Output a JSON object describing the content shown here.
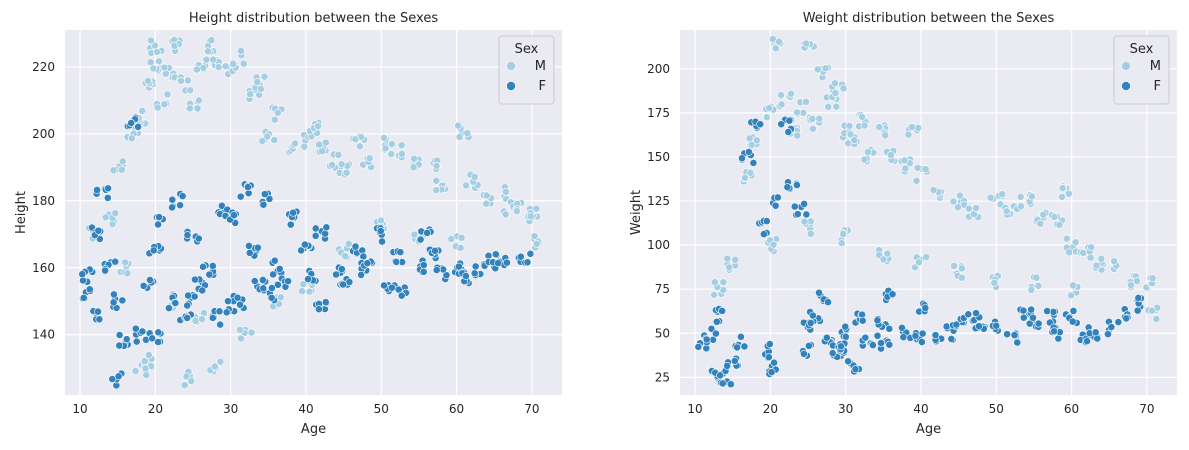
{
  "colors": {
    "M": "#a6cee3",
    "F": "#3182bd",
    "point_edge": "#ffffff"
  },
  "chart_data": [
    {
      "type": "scatter",
      "title": "Height distribution between the Sexes",
      "xlabel": "Age",
      "ylabel": "Height",
      "xlim": [
        8,
        74
      ],
      "ylim": [
        122,
        231
      ],
      "xticks": [
        10,
        20,
        30,
        40,
        50,
        60,
        70
      ],
      "yticks": [
        140,
        160,
        180,
        200,
        220
      ],
      "grid": true,
      "legend": {
        "title": "Sex",
        "placement": "top-right",
        "entries": [
          "M",
          "F"
        ]
      },
      "series": [
        {
          "name": "M",
          "color": "#a6cee3",
          "points": [
            [
              12,
              170
            ],
            [
              14,
              175
            ],
            [
              15,
              190
            ],
            [
              17,
              200
            ],
            [
              18,
              205
            ],
            [
              19,
              215
            ],
            [
              20,
              220
            ],
            [
              20,
              226
            ],
            [
              21,
              210
            ],
            [
              22,
              218
            ],
            [
              23,
              226
            ],
            [
              24,
              215
            ],
            [
              25,
              208
            ],
            [
              26,
              220
            ],
            [
              27,
              226
            ],
            [
              28,
              222
            ],
            [
              30,
              219
            ],
            [
              31,
              223
            ],
            [
              33,
              212
            ],
            [
              34,
              215
            ],
            [
              35,
              200
            ],
            [
              36,
              206
            ],
            [
              38,
              195
            ],
            [
              40,
              198
            ],
            [
              41,
              202
            ],
            [
              42,
              196
            ],
            [
              44,
              192
            ],
            [
              45,
              190
            ],
            [
              47,
              198
            ],
            [
              48,
              192
            ],
            [
              50,
              197
            ],
            [
              52,
              195
            ],
            [
              55,
              192
            ],
            [
              57,
              190
            ],
            [
              58,
              185
            ],
            [
              61,
              201
            ],
            [
              62,
              186
            ],
            [
              64,
              180
            ],
            [
              66,
              182
            ],
            [
              67,
              178
            ],
            [
              68,
              178
            ],
            [
              70,
              175
            ],
            [
              70,
              177
            ],
            [
              71,
              168
            ],
            [
              16,
              160
            ],
            [
              18,
              130
            ],
            [
              19,
              132
            ],
            [
              22,
              150
            ],
            [
              24,
              127
            ],
            [
              26,
              145
            ],
            [
              28,
              130
            ],
            [
              32,
              140
            ],
            [
              36,
              150
            ],
            [
              40,
              155
            ],
            [
              45,
              165
            ],
            [
              50,
              172
            ],
            [
              55,
              170
            ],
            [
              60,
              168
            ]
          ]
        },
        {
          "name": "F",
          "color": "#3182bd",
          "points": [
            [
              11,
              158
            ],
            [
              11,
              152
            ],
            [
              12,
              145
            ],
            [
              12,
              170
            ],
            [
              13,
              183
            ],
            [
              14,
              160
            ],
            [
              15,
              127
            ],
            [
              15,
              150
            ],
            [
              16,
              138
            ],
            [
              17,
              204
            ],
            [
              18,
              140
            ],
            [
              19,
              155
            ],
            [
              20,
              165
            ],
            [
              21,
              175
            ],
            [
              22,
              150
            ],
            [
              23,
              180
            ],
            [
              24,
              145
            ],
            [
              25,
              170
            ],
            [
              26,
              155
            ],
            [
              27,
              160
            ],
            [
              28,
              145
            ],
            [
              29,
              178
            ],
            [
              30,
              175
            ],
            [
              31,
              150
            ],
            [
              32,
              183
            ],
            [
              33,
              165
            ],
            [
              34,
              155
            ],
            [
              35,
              180
            ],
            [
              36,
              160
            ],
            [
              37,
              155
            ],
            [
              38,
              175
            ],
            [
              40,
              165
            ],
            [
              41,
              158
            ],
            [
              42,
              170
            ],
            [
              44,
              160
            ],
            [
              45,
              155
            ],
            [
              47,
              165
            ],
            [
              48,
              160
            ],
            [
              50,
              170
            ],
            [
              51,
              155
            ],
            [
              52,
              163
            ],
            [
              53,
              152
            ],
            [
              55,
              160
            ],
            [
              56,
              170
            ],
            [
              57,
              165
            ],
            [
              58,
              158
            ],
            [
              60,
              160
            ],
            [
              61,
              157
            ],
            [
              63,
              159
            ],
            [
              65,
              162
            ],
            [
              66,
              162
            ],
            [
              69,
              162
            ],
            [
              20,
              140
            ],
            [
              25,
              150
            ],
            [
              30,
              148
            ],
            [
              35,
              152
            ],
            [
              42,
              148
            ],
            [
              48,
              160
            ]
          ]
        }
      ]
    },
    {
      "type": "scatter",
      "title": "Weight distribution between the Sexes",
      "xlabel": "Age",
      "ylabel": "Weight",
      "xlim": [
        8,
        74
      ],
      "ylim": [
        15,
        222
      ],
      "xticks": [
        10,
        20,
        30,
        40,
        50,
        60,
        70
      ],
      "yticks": [
        25,
        50,
        75,
        100,
        125,
        150,
        175,
        200
      ],
      "grid": true,
      "legend": {
        "title": "Sex",
        "placement": "top-right",
        "entries": [
          "M",
          "F"
        ]
      },
      "series": [
        {
          "name": "M",
          "color": "#a6cee3",
          "points": [
            [
              13,
              75
            ],
            [
              15,
              90
            ],
            [
              17,
              140
            ],
            [
              18,
              160
            ],
            [
              20,
              175
            ],
            [
              21,
              214
            ],
            [
              22,
              182
            ],
            [
              23,
              165
            ],
            [
              24,
              178
            ],
            [
              25,
              214
            ],
            [
              26,
              170
            ],
            [
              27,
              198
            ],
            [
              28,
              180
            ],
            [
              29,
              190
            ],
            [
              30,
              165
            ],
            [
              31,
              160
            ],
            [
              32,
              170
            ],
            [
              33,
              150
            ],
            [
              35,
              165
            ],
            [
              36,
              150
            ],
            [
              38,
              145
            ],
            [
              39,
              165
            ],
            [
              40,
              140
            ],
            [
              42,
              130
            ],
            [
              45,
              125
            ],
            [
              47,
              120
            ],
            [
              50,
              126
            ],
            [
              52,
              118
            ],
            [
              54,
              125
            ],
            [
              56,
              115
            ],
            [
              58,
              115
            ],
            [
              59,
              130
            ],
            [
              60,
              100
            ],
            [
              62,
              95
            ],
            [
              64,
              90
            ],
            [
              66,
              88
            ],
            [
              68,
              80
            ],
            [
              70,
              78
            ],
            [
              71,
              62
            ],
            [
              20,
              100
            ],
            [
              25,
              110
            ],
            [
              30,
              105
            ],
            [
              35,
              95
            ],
            [
              40,
              90
            ],
            [
              45,
              85
            ],
            [
              50,
              80
            ],
            [
              55,
              78
            ],
            [
              60,
              75
            ]
          ]
        },
        {
          "name": "F",
          "color": "#3182bd",
          "points": [
            [
              11,
              45
            ],
            [
              12,
              50
            ],
            [
              13,
              28
            ],
            [
              13,
              60
            ],
            [
              14,
              25
            ],
            [
              15,
              35
            ],
            [
              16,
              45
            ],
            [
              17,
              150
            ],
            [
              18,
              167
            ],
            [
              19,
              110
            ],
            [
              20,
              30
            ],
            [
              21,
              125
            ],
            [
              22,
              167
            ],
            [
              23,
              135
            ],
            [
              24,
              120
            ],
            [
              25,
              55
            ],
            [
              26,
              60
            ],
            [
              27,
              70
            ],
            [
              28,
              45
            ],
            [
              29,
              40
            ],
            [
              30,
              50
            ],
            [
              31,
              30
            ],
            [
              32,
              60
            ],
            [
              33,
              45
            ],
            [
              35,
              55
            ],
            [
              36,
              70
            ],
            [
              38,
              50
            ],
            [
              40,
              65
            ],
            [
              42,
              45
            ],
            [
              44,
              50
            ],
            [
              45,
              55
            ],
            [
              47,
              60
            ],
            [
              48,
              50
            ],
            [
              50,
              55
            ],
            [
              52,
              48
            ],
            [
              54,
              60
            ],
            [
              55,
              55
            ],
            [
              57,
              60
            ],
            [
              58,
              50
            ],
            [
              60,
              60
            ],
            [
              62,
              48
            ],
            [
              63,
              50
            ],
            [
              65,
              53
            ],
            [
              67,
              60
            ],
            [
              69,
              66
            ],
            [
              20,
              40
            ],
            [
              25,
              40
            ],
            [
              30,
              42
            ],
            [
              35,
              45
            ],
            [
              40,
              48
            ]
          ]
        }
      ]
    }
  ]
}
